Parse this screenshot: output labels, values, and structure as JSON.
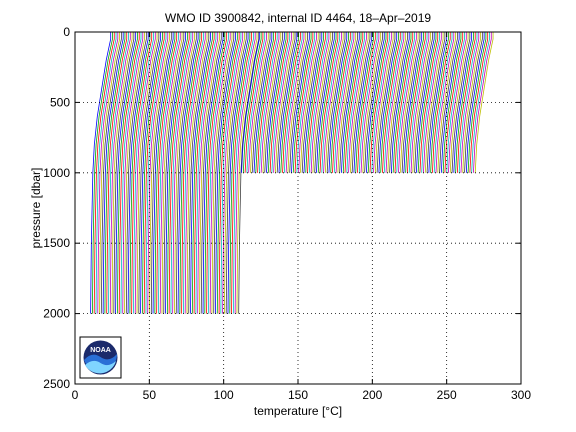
{
  "chart_data": {
    "type": "line",
    "title": "WMO ID 3900842, internal ID 4464, 18–Apr–2019",
    "xlabel": "temperature [°C]",
    "ylabel": "pressure [dbar]",
    "xlim": [
      0,
      300
    ],
    "ylim": [
      0,
      2500
    ],
    "y_reversed": true,
    "grid": true,
    "x_ticks": [
      "0",
      "50",
      "100",
      "150",
      "200",
      "250",
      "300"
    ],
    "y_ticks": [
      "0",
      "500",
      "1000",
      "1500",
      "2000",
      "2500"
    ],
    "profile_groups": [
      {
        "description": "deep profiles (to ~2000 dbar), each shifted by cycle number",
        "offset_start": 10,
        "offset_end": 110,
        "step": 1.2,
        "max_pressure": 2000
      },
      {
        "description": "shallow profiles (to ~1000 dbar), each shifted by cycle number",
        "offset_start": 110,
        "offset_end": 268,
        "step": 1.2,
        "max_pressure": 1000
      }
    ],
    "profile_shape": [
      {
        "p": 0,
        "dt": 14
      },
      {
        "p": 50,
        "dt": 14
      },
      {
        "p": 100,
        "dt": 13
      },
      {
        "p": 200,
        "dt": 11
      },
      {
        "p": 400,
        "dt": 8
      },
      {
        "p": 600,
        "dt": 5
      },
      {
        "p": 800,
        "dt": 3
      },
      {
        "p": 1000,
        "dt": 2
      },
      {
        "p": 1500,
        "dt": 1
      },
      {
        "p": 2000,
        "dt": 0.5
      }
    ],
    "series_colors": [
      "#0000ff",
      "#00aa00",
      "#ff0000",
      "#00bfbf",
      "#bf00bf",
      "#bfbf00",
      "#404040"
    ]
  },
  "logo": {
    "text": "NOAA",
    "colors": {
      "dark": "#1b2a6b",
      "mid": "#2a6fd6",
      "light": "#7fd4ff"
    }
  }
}
